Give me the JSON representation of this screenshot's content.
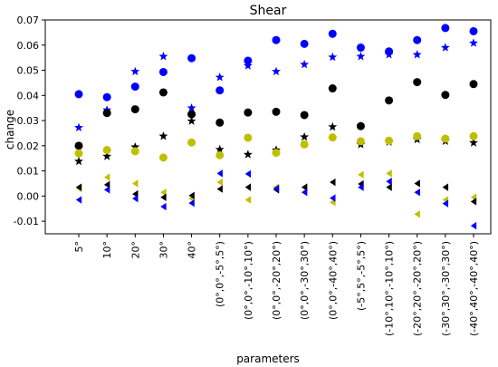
{
  "chart_data": {
    "type": "scatter",
    "title": "Shear",
    "xlabel": "parameters",
    "ylabel": "change",
    "ylim": [
      -0.015,
      0.07
    ],
    "yticks": [
      -0.01,
      0.0,
      0.01,
      0.02,
      0.03,
      0.04,
      0.05,
      0.06,
      0.07
    ],
    "ytick_labels": [
      "-0.01",
      "0.00",
      "0.01",
      "0.02",
      "0.03",
      "0.04",
      "0.05",
      "0.06",
      "0.07"
    ],
    "categories": [
      "5°",
      "10°",
      "20°",
      "30°",
      "40°",
      "(0°,0°,-5°,5°)",
      "(0°,0°,-10°,10°)",
      "(0°,0°,-20°,20°)",
      "(0°,0°,-30°,30°)",
      "(0°,0°,-40°,40°)",
      "(-5°,5°,-5°,5°)",
      "(-10°,10°,-10°,10°)",
      "(-20°,20°,-20°,20°)",
      "(-30°,30°,-30°,30°)",
      "(-40°,40°,-40°,40°)"
    ],
    "category_labels": [
      "5°",
      "10°",
      "20°",
      "30°",
      "40°",
      "(0°,0°,-5°,5°)",
      "(0°,0°,-10°,10°)",
      "(0°,0°,-20°,20°)",
      "(0°,0°,-30°,30°)",
      "(0°,0°,-40°,40°)",
      "(-5°,5°,-5°,5°)",
      "(-10°,10°,-10°,10°)",
      "(-20°,20°,-20°,20°)",
      "(-30°,30°,-30°,30°)",
      "(-40°,40°,-40°,40°)"
    ],
    "grid": false,
    "series": [
      {
        "color": "#0000ff",
        "marker": "circle",
        "values": [
          0.0405,
          0.0393,
          0.0435,
          0.0493,
          0.0548,
          0.042,
          0.0538,
          0.062,
          0.0605,
          0.0645,
          0.059,
          0.0575,
          0.062,
          0.0668,
          0.0655
        ]
      },
      {
        "color": "#0000ff",
        "marker": "star",
        "values": [
          0.0272,
          0.0342,
          0.0495,
          0.0555,
          0.035,
          0.0472,
          0.0518,
          0.0495,
          0.0523,
          0.0552,
          0.0555,
          0.0562,
          0.0562,
          0.059,
          0.0608
        ]
      },
      {
        "color": "#000000",
        "marker": "circle",
        "values": [
          0.02,
          0.033,
          0.0345,
          0.0412,
          0.0325,
          0.0292,
          0.0332,
          0.0335,
          0.0322,
          0.0428,
          0.0278,
          0.038,
          0.0453,
          0.0402,
          0.0445
        ]
      },
      {
        "color": "#000000",
        "marker": "star",
        "values": [
          0.0138,
          0.0158,
          0.0195,
          0.0238,
          0.0298,
          0.0185,
          0.0165,
          0.0183,
          0.0235,
          0.0275,
          0.0205,
          0.0215,
          0.0225,
          0.0218,
          0.0212
        ]
      },
      {
        "color": "#bfbf00",
        "marker": "circle",
        "values": [
          0.017,
          0.0183,
          0.0178,
          0.0153,
          0.0213,
          0.0162,
          0.0232,
          0.0172,
          0.0205,
          0.0233,
          0.0218,
          0.022,
          0.0238,
          0.0228,
          0.0238
        ]
      },
      {
        "color": "#bfbf00",
        "marker": "triangle-left",
        "values": [
          0.003,
          0.0075,
          0.005,
          0.0015,
          -0.001,
          0.0055,
          -0.0015,
          0.0035,
          0.0035,
          -0.0025,
          0.0085,
          0.009,
          -0.0072,
          -0.0015,
          -0.0005
        ]
      },
      {
        "color": "#000000",
        "marker": "triangle-left",
        "values": [
          0.0035,
          0.0045,
          0.0008,
          -0.0005,
          0.0002,
          0.0028,
          0.0035,
          0.0025,
          0.0035,
          0.0055,
          0.0048,
          0.0035,
          0.005,
          0.0035,
          -0.0022
        ]
      },
      {
        "color": "#0000ff",
        "marker": "triangle-left",
        "values": [
          -0.0015,
          0.0025,
          -0.001,
          -0.0042,
          -0.0028,
          0.009,
          0.0088,
          0.003,
          0.0015,
          -0.0008,
          0.0035,
          0.0058,
          0.0015,
          -0.003,
          -0.0118
        ]
      }
    ]
  }
}
